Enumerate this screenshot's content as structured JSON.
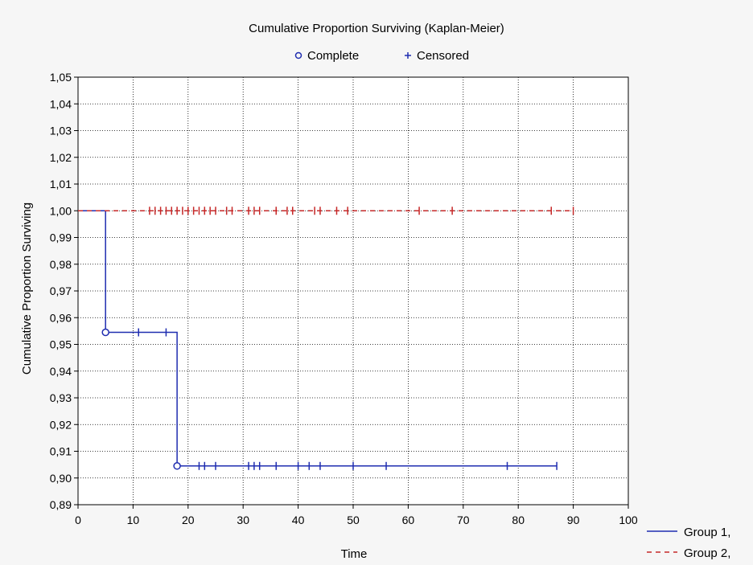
{
  "chart_data": {
    "type": "line",
    "title": "Cumulative Proportion Surviving (Kaplan-Meier)",
    "xlabel": "Time",
    "ylabel": "Cumulative Proportion Surviving",
    "xlim": [
      0,
      100
    ],
    "ylim": [
      0.89,
      1.05
    ],
    "grid": true,
    "x_ticks": [
      "0",
      "10",
      "20",
      "30",
      "40",
      "50",
      "60",
      "70",
      "80",
      "90",
      "100"
    ],
    "y_ticks": [
      "1,05",
      "1,04",
      "1,03",
      "1,02",
      "1,01",
      "1,00",
      "0,99",
      "0,98",
      "0,97",
      "0,96",
      "0,95",
      "0,94",
      "0,93",
      "0,92",
      "0,91",
      "0,90",
      "0,89"
    ],
    "marker_legend": {
      "complete_label": "Complete",
      "censored_label": "Censored",
      "position": "top-center"
    },
    "series_legend_position": "bottom-right",
    "series": [
      {
        "name": "Group 1,",
        "color": "#1f2db0",
        "style": "solid",
        "step": [
          [
            0,
            1.0
          ],
          [
            5,
            1.0
          ],
          [
            5,
            0.9545
          ],
          [
            18,
            0.9545
          ],
          [
            18,
            0.9045
          ],
          [
            87,
            0.9045
          ]
        ],
        "complete": [
          [
            5,
            0.9545
          ],
          [
            18,
            0.9045
          ]
        ],
        "censored": [
          [
            11,
            0.9545
          ],
          [
            16,
            0.9545
          ],
          [
            22,
            0.9045
          ],
          [
            23,
            0.9045
          ],
          [
            25,
            0.9045
          ],
          [
            31,
            0.9045
          ],
          [
            32,
            0.9045
          ],
          [
            33,
            0.9045
          ],
          [
            36,
            0.9045
          ],
          [
            40,
            0.9045
          ],
          [
            42,
            0.9045
          ],
          [
            44,
            0.9045
          ],
          [
            50,
            0.9045
          ],
          [
            56,
            0.9045
          ],
          [
            78,
            0.9045
          ],
          [
            87,
            0.9045
          ]
        ]
      },
      {
        "name": "Group 2,",
        "color": "#c62828",
        "style": "dashed",
        "step": [
          [
            0,
            1.0
          ],
          [
            90,
            1.0
          ]
        ],
        "complete": [],
        "censored": [
          [
            13,
            1.0
          ],
          [
            14,
            1.0
          ],
          [
            15,
            1.0
          ],
          [
            16,
            1.0
          ],
          [
            17,
            1.0
          ],
          [
            18,
            1.0
          ],
          [
            19,
            1.0
          ],
          [
            20,
            1.0
          ],
          [
            21,
            1.0
          ],
          [
            22,
            1.0
          ],
          [
            23,
            1.0
          ],
          [
            24,
            1.0
          ],
          [
            25,
            1.0
          ],
          [
            27,
            1.0
          ],
          [
            28,
            1.0
          ],
          [
            31,
            1.0
          ],
          [
            32,
            1.0
          ],
          [
            33,
            1.0
          ],
          [
            36,
            1.0
          ],
          [
            38,
            1.0
          ],
          [
            39,
            1.0
          ],
          [
            43,
            1.0
          ],
          [
            44,
            1.0
          ],
          [
            47,
            1.0
          ],
          [
            49,
            1.0
          ],
          [
            62,
            1.0
          ],
          [
            68,
            1.0
          ],
          [
            86,
            1.0
          ],
          [
            90,
            1.0
          ]
        ]
      }
    ]
  }
}
